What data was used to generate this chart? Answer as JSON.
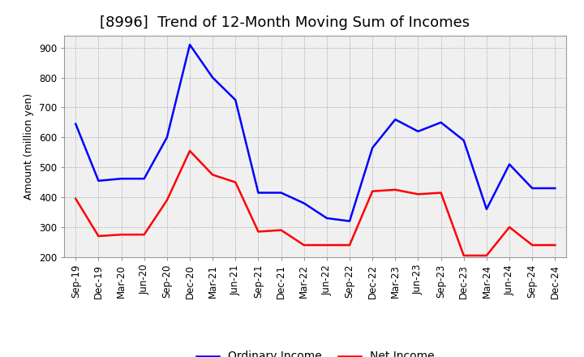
{
  "title": "[8996]  Trend of 12-Month Moving Sum of Incomes",
  "ylabel": "Amount (million yen)",
  "x_labels": [
    "Sep-19",
    "Dec-19",
    "Mar-20",
    "Jun-20",
    "Sep-20",
    "Dec-20",
    "Mar-21",
    "Jun-21",
    "Sep-21",
    "Dec-21",
    "Mar-22",
    "Jun-22",
    "Sep-22",
    "Dec-22",
    "Mar-23",
    "Jun-23",
    "Sep-23",
    "Dec-23",
    "Mar-24",
    "Jun-24",
    "Sep-24",
    "Dec-24"
  ],
  "ordinary_income": [
    645,
    455,
    462,
    462,
    600,
    910,
    800,
    725,
    415,
    415,
    380,
    330,
    320,
    565,
    660,
    620,
    650,
    590,
    360,
    510,
    430,
    430
  ],
  "net_income": [
    395,
    270,
    275,
    275,
    390,
    555,
    475,
    450,
    285,
    290,
    240,
    240,
    240,
    420,
    425,
    410,
    415,
    205,
    205,
    300,
    240,
    240
  ],
  "ordinary_color": "#0000ff",
  "net_color": "#ff0000",
  "ylim": [
    200,
    940
  ],
  "yticks": [
    200,
    300,
    400,
    500,
    600,
    700,
    800,
    900
  ],
  "bg_color": "#ffffff",
  "plot_bg_color": "#f0f0f0",
  "grid_color": "#888888",
  "line_width": 1.8,
  "title_fontsize": 13,
  "label_fontsize": 9,
  "tick_fontsize": 8.5,
  "legend_fontsize": 10
}
